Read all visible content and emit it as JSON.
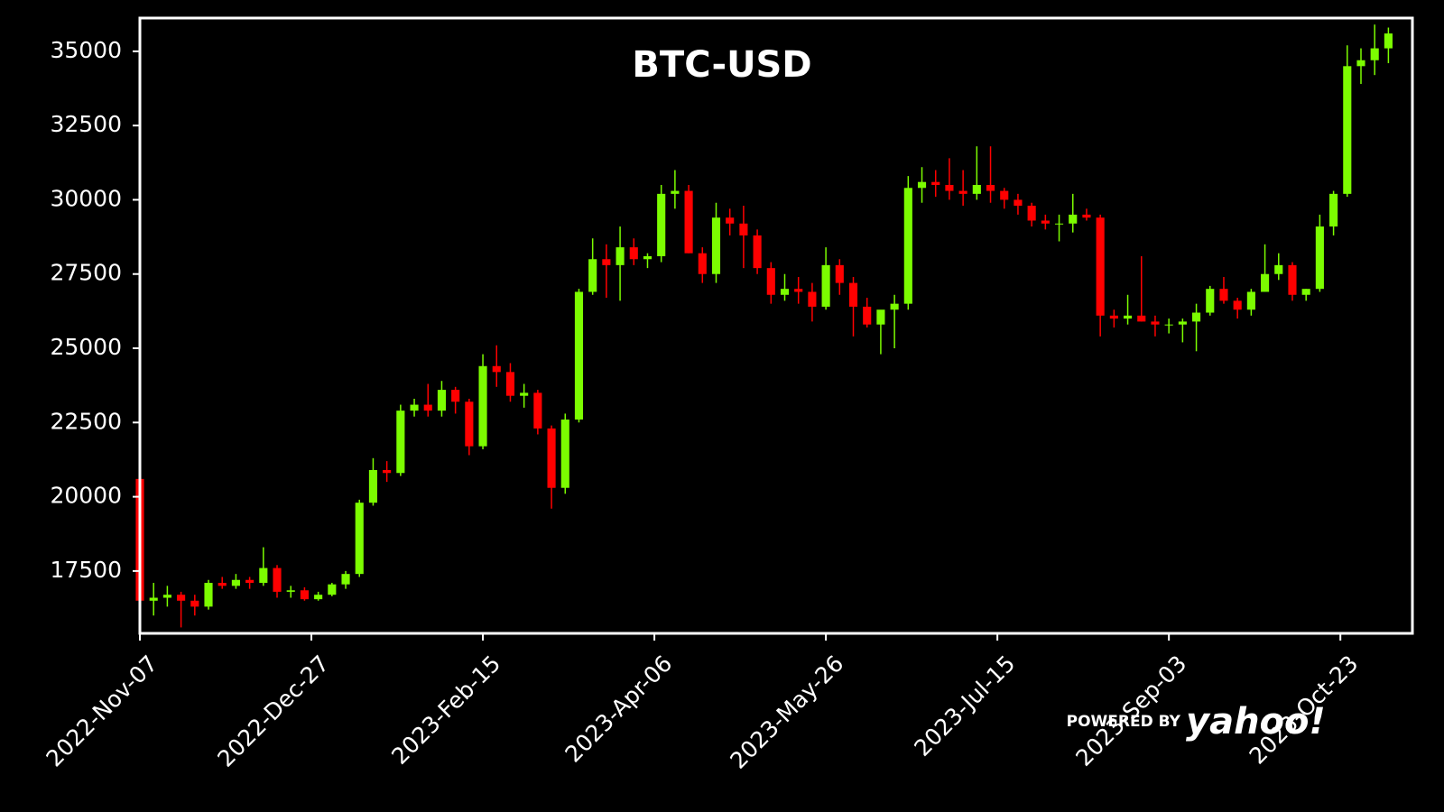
{
  "chart_data": {
    "type": "candlestick",
    "title": "BTC-USD",
    "watermark": {
      "prefix": "POWERED BY",
      "brand": "yahoo!"
    },
    "up_color": "#7cfc00",
    "down_color": "#ff0000",
    "xlim": [
      "2022-11-07",
      "2023-11-13"
    ],
    "xticks": [
      {
        "value": "2022-11-07",
        "label": "2022-Nov-07"
      },
      {
        "value": "2022-12-27",
        "label": "2022-Dec-27"
      },
      {
        "value": "2023-02-15",
        "label": "2023-Feb-15"
      },
      {
        "value": "2023-04-06",
        "label": "2023-Apr-06"
      },
      {
        "value": "2023-05-26",
        "label": "2023-May-26"
      },
      {
        "value": "2023-07-15",
        "label": "2023-Jul-15"
      },
      {
        "value": "2023-09-03",
        "label": "2023-Sep-03"
      },
      {
        "value": "2023-10-23",
        "label": "2023-Oct-23"
      }
    ],
    "ylim": [
      15400,
      36120
    ],
    "yticks": [
      17500,
      20000,
      22500,
      25000,
      27500,
      30000,
      32500,
      35000
    ],
    "x": [
      "2022-11-07",
      "2022-11-11",
      "2022-11-15",
      "2022-11-19",
      "2022-11-23",
      "2022-11-27",
      "2022-12-01",
      "2022-12-05",
      "2022-12-09",
      "2022-12-13",
      "2022-12-17",
      "2022-12-21",
      "2022-12-25",
      "2022-12-29",
      "2023-01-02",
      "2023-01-06",
      "2023-01-10",
      "2023-01-14",
      "2023-01-18",
      "2023-01-22",
      "2023-01-26",
      "2023-01-30",
      "2023-02-03",
      "2023-02-07",
      "2023-02-11",
      "2023-02-15",
      "2023-02-19",
      "2023-02-23",
      "2023-02-27",
      "2023-03-03",
      "2023-03-07",
      "2023-03-11",
      "2023-03-15",
      "2023-03-19",
      "2023-03-23",
      "2023-03-27",
      "2023-03-31",
      "2023-04-04",
      "2023-04-08",
      "2023-04-12",
      "2023-04-16",
      "2023-04-20",
      "2023-04-24",
      "2023-04-28",
      "2023-05-02",
      "2023-05-06",
      "2023-05-10",
      "2023-05-14",
      "2023-05-18",
      "2023-05-22",
      "2023-05-26",
      "2023-05-30",
      "2023-06-03",
      "2023-06-07",
      "2023-06-11",
      "2023-06-15",
      "2023-06-19",
      "2023-06-23",
      "2023-06-27",
      "2023-07-01",
      "2023-07-05",
      "2023-07-09",
      "2023-07-13",
      "2023-07-17",
      "2023-07-21",
      "2023-07-25",
      "2023-07-29",
      "2023-08-02",
      "2023-08-06",
      "2023-08-10",
      "2023-08-14",
      "2023-08-18",
      "2023-08-22",
      "2023-08-26",
      "2023-08-30",
      "2023-09-03",
      "2023-09-07",
      "2023-09-11",
      "2023-09-15",
      "2023-09-19",
      "2023-09-23",
      "2023-09-27",
      "2023-10-01",
      "2023-10-05",
      "2023-10-09",
      "2023-10-13",
      "2023-10-17",
      "2023-10-21",
      "2023-10-25",
      "2023-10-29",
      "2023-11-02",
      "2023-11-06"
    ],
    "open": [
      20600,
      16500,
      16600,
      16700,
      16500,
      16300,
      17100,
      17000,
      17200,
      17100,
      17600,
      16800,
      16850,
      16550,
      16700,
      17050,
      17400,
      19800,
      20900,
      20800,
      22900,
      23100,
      22900,
      23600,
      23200,
      21700,
      24400,
      24200,
      23400,
      23500,
      22300,
      20300,
      22600,
      26900,
      28000,
      27800,
      28400,
      28000,
      28100,
      30200,
      30300,
      28200,
      27500,
      29400,
      29200,
      28800,
      27700,
      26800,
      27000,
      26900,
      26400,
      27800,
      27200,
      26400,
      25800,
      26300,
      26500,
      30400,
      30600,
      30500,
      30300,
      30200,
      30500,
      30300,
      30000,
      29800,
      29300,
      29200,
      29200,
      29500,
      29400,
      26100,
      26000,
      26100,
      25900,
      25800,
      25800,
      25900,
      26200,
      27000,
      26600,
      26300,
      26900,
      27500,
      27800,
      26800,
      27000,
      29100,
      30200,
      34500,
      34700,
      35100
    ],
    "high": [
      20700,
      17100,
      17000,
      16800,
      16700,
      17200,
      17300,
      17400,
      17300,
      18300,
      17700,
      17000,
      16950,
      16800,
      17100,
      17500,
      19900,
      21300,
      21200,
      23100,
      23300,
      23800,
      23900,
      23700,
      23300,
      24800,
      25100,
      24500,
      23800,
      23600,
      22400,
      22800,
      27000,
      28700,
      28500,
      29100,
      28700,
      28200,
      30500,
      31000,
      30500,
      28400,
      29900,
      29700,
      29800,
      29000,
      27900,
      27500,
      27400,
      27200,
      28400,
      28000,
      27400,
      26700,
      26100,
      26800,
      30800,
      31100,
      31000,
      31400,
      31000,
      31800,
      31800,
      30400,
      30200,
      29900,
      29500,
      29500,
      30200,
      29700,
      29500,
      26300,
      26800,
      28100,
      26100,
      26000,
      26000,
      26500,
      27100,
      27400,
      26700,
      27000,
      28500,
      28200,
      27900,
      27000,
      29500,
      30300,
      35200,
      35100,
      35900,
      35800
    ],
    "low": [
      15800,
      16000,
      16300,
      15600,
      16000,
      16200,
      16900,
      16900,
      16900,
      17000,
      16600,
      16600,
      16500,
      16500,
      16650,
      16900,
      17300,
      19700,
      20500,
      20700,
      22700,
      22700,
      22700,
      22800,
      21400,
      21600,
      23700,
      23200,
      23000,
      22100,
      19600,
      20100,
      22500,
      26800,
      26700,
      26600,
      27800,
      27700,
      27900,
      29700,
      28200,
      27200,
      27200,
      28800,
      27700,
      27500,
      26500,
      26600,
      26500,
      25900,
      26300,
      26800,
      25400,
      25700,
      24800,
      25000,
      26300,
      29900,
      30100,
      30000,
      29800,
      30000,
      29900,
      29700,
      29500,
      29100,
      29000,
      28600,
      28900,
      29300,
      25400,
      25700,
      25800,
      25900,
      25400,
      25500,
      25200,
      24900,
      26100,
      26500,
      26000,
      26100,
      26900,
      27300,
      26600,
      26600,
      26900,
      28800,
      30100,
      33900,
      34200,
      34600
    ],
    "close": [
      16500,
      16600,
      16700,
      16500,
      16300,
      17100,
      17000,
      17200,
      17100,
      17600,
      16800,
      16850,
      16550,
      16700,
      17050,
      17400,
      19800,
      20900,
      20800,
      22900,
      23100,
      22900,
      23600,
      23200,
      21700,
      24400,
      24200,
      23400,
      23500,
      22300,
      20300,
      22600,
      26900,
      28000,
      27800,
      28400,
      28000,
      28100,
      30200,
      30300,
      28200,
      27500,
      29400,
      29200,
      28800,
      27700,
      26800,
      27000,
      26900,
      26400,
      27800,
      27200,
      26400,
      25800,
      26300,
      26500,
      30400,
      30600,
      30500,
      30300,
      30200,
      30500,
      30300,
      30000,
      29800,
      29300,
      29200,
      29200,
      29500,
      29400,
      26100,
      26000,
      26100,
      25900,
      25800,
      25800,
      25900,
      26200,
      27000,
      26600,
      26300,
      26900,
      27500,
      27800,
      26800,
      27000,
      29100,
      30200,
      34500,
      34700,
      35100,
      35600
    ]
  }
}
